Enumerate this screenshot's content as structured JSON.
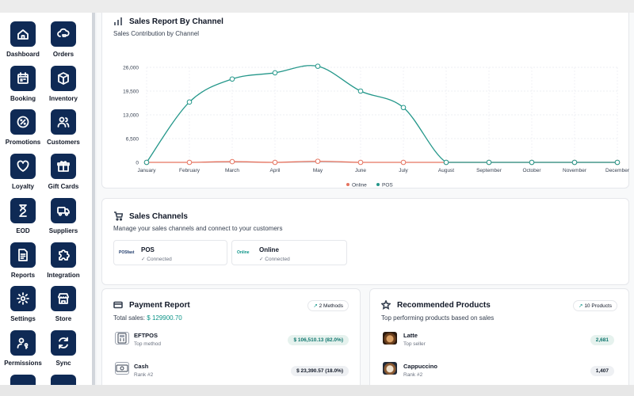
{
  "sidebar": {
    "items": [
      {
        "label": "Dashboard",
        "icon": "home-icon"
      },
      {
        "label": "Orders",
        "icon": "cloud-cart-icon"
      },
      {
        "label": "Booking",
        "icon": "calendar-icon"
      },
      {
        "label": "Inventory",
        "icon": "box-icon"
      },
      {
        "label": "Promotions",
        "icon": "percent-icon"
      },
      {
        "label": "Customers",
        "icon": "users-icon"
      },
      {
        "label": "Loyalty",
        "icon": "heart-icon"
      },
      {
        "label": "Gift Cards",
        "icon": "gift-icon"
      },
      {
        "label": "EOD",
        "icon": "hourglass-icon"
      },
      {
        "label": "Suppliers",
        "icon": "truck-icon"
      },
      {
        "label": "Reports",
        "icon": "document-icon"
      },
      {
        "label": "Integration",
        "icon": "puzzle-icon"
      },
      {
        "label": "Settings",
        "icon": "gear-icon"
      },
      {
        "label": "Store",
        "icon": "store-icon"
      },
      {
        "label": "Permissions",
        "icon": "user-key-icon"
      },
      {
        "label": "Sync",
        "icon": "sync-icon"
      }
    ]
  },
  "sales_report": {
    "title": "Sales Report By Channel",
    "subtitle": "Sales Contribution by Channel"
  },
  "chart_data": {
    "type": "line",
    "categories": [
      "January",
      "February",
      "March",
      "April",
      "May",
      "June",
      "July",
      "August",
      "September",
      "October",
      "November",
      "December"
    ],
    "series": [
      {
        "name": "Online",
        "color": "#e5735f",
        "values": [
          0,
          0,
          200,
          0,
          300,
          0,
          0,
          0,
          0,
          0,
          0,
          0
        ]
      },
      {
        "name": "POS",
        "color": "#24978a",
        "values": [
          0,
          16500,
          22800,
          24500,
          26300,
          19500,
          15000,
          0,
          0,
          0,
          0,
          0
        ]
      }
    ],
    "yticks": [
      "0",
      "6,500",
      "13,000",
      "19,500",
      "26,000"
    ],
    "ylim": [
      0,
      26000
    ],
    "grid": true,
    "legend": "bottom"
  },
  "sales_channels": {
    "title": "Sales Channels",
    "subtitle": "Manage your sales channels and connect to your customers",
    "channels": [
      {
        "name": "POS",
        "status": "✓ Connected",
        "logo": "POSfast"
      },
      {
        "name": "Online",
        "status": "✓ Connected",
        "logo": "Online"
      }
    ]
  },
  "payment_report": {
    "title": "Payment Report",
    "badge": "2 Methods",
    "total_label": "Total sales:",
    "total_value": "$ 129900.70",
    "methods": [
      {
        "name": "EFTPOS",
        "sub": "Top method",
        "amount": "$ 106,510.13 (82.0%)"
      },
      {
        "name": "Cash",
        "sub": "Rank #2",
        "amount": "$ 23,390.57 (18.0%)"
      }
    ]
  },
  "recommended_products": {
    "title": "Recommended Products",
    "badge": "10 Products",
    "subtitle": "Top performing products based on sales",
    "products": [
      {
        "name": "Latte",
        "sub": "Top seller",
        "count": "2,681"
      },
      {
        "name": "Cappuccino",
        "sub": "Rank #2",
        "count": "1,407"
      }
    ]
  }
}
